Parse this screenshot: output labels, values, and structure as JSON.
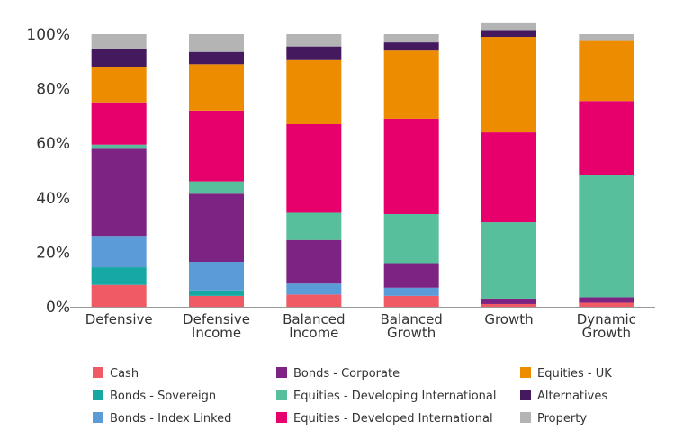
{
  "chart_data": {
    "type": "bar",
    "stacked": true,
    "title": "",
    "xlabel": "",
    "ylabel": "",
    "ylim": [
      0,
      100
    ],
    "yticks": [
      0,
      20,
      40,
      60,
      80,
      100
    ],
    "ytick_labels": [
      "0%",
      "20%",
      "40%",
      "60%",
      "80%",
      "100%"
    ],
    "grid": false,
    "legend_position": "bottom",
    "categories": [
      [
        "Defensive"
      ],
      [
        "Defensive",
        "Income"
      ],
      [
        "Balanced",
        "Income"
      ],
      [
        "Balanced",
        "Growth"
      ],
      [
        "Growth"
      ],
      [
        "Dynamic",
        "Growth"
      ]
    ],
    "series": [
      {
        "name": "Cash",
        "color": "#EF5A64",
        "values": [
          8,
          4,
          4.5,
          4,
          1,
          1.5
        ]
      },
      {
        "name": "Bonds - Sovereign",
        "color": "#16A9A4",
        "values": [
          6.5,
          2,
          0,
          0,
          0,
          0
        ]
      },
      {
        "name": "Bonds - Index Linked",
        "color": "#5B9BD8",
        "values": [
          11.5,
          10.5,
          4,
          3,
          0,
          0
        ]
      },
      {
        "name": "Bonds - Corporate",
        "color": "#7C2384",
        "values": [
          32,
          25,
          16,
          9,
          2,
          2
        ]
      },
      {
        "name": "Equities - Developing International",
        "color": "#58BF9C",
        "values": [
          1.5,
          4.5,
          10,
          18,
          28,
          45
        ]
      },
      {
        "name": "Equities - Developed International",
        "color": "#E7006B",
        "values": [
          15.5,
          26,
          32.5,
          35,
          33,
          27
        ]
      },
      {
        "name": "Equities - UK",
        "color": "#EE8C00",
        "values": [
          13,
          17,
          23.5,
          25,
          35,
          22
        ]
      },
      {
        "name": "Alternatives",
        "color": "#45195E",
        "values": [
          6.5,
          4.5,
          5,
          3,
          2.5,
          0
        ]
      },
      {
        "name": "Property",
        "color": "#B4B4B4",
        "values": [
          5.5,
          6.5,
          4.5,
          3,
          2.5,
          2.5
        ]
      }
    ]
  }
}
